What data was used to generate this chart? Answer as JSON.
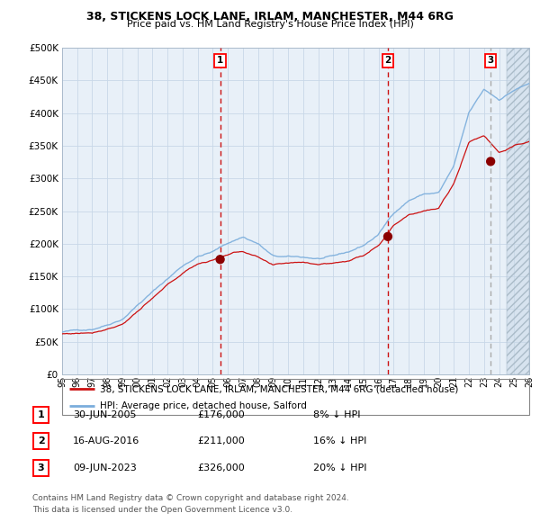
{
  "title": "38, STICKENS LOCK LANE, IRLAM, MANCHESTER, M44 6RG",
  "subtitle": "Price paid vs. HM Land Registry's House Price Index (HPI)",
  "hpi_color": "#7aaddc",
  "price_color": "#cc1111",
  "plot_bg": "#e8f0f8",
  "grid_color": "#c8d8e8",
  "marker_color": "#8b0000",
  "vline_color": "#cc1111",
  "vline3_color": "#aaaaaa",
  "transactions": [
    {
      "date_num": 2005.49,
      "price": 176000,
      "label": "1"
    },
    {
      "date_num": 2016.62,
      "price": 211000,
      "label": "2"
    },
    {
      "date_num": 2023.44,
      "price": 326000,
      "label": "3"
    }
  ],
  "transaction_details": [
    {
      "label": "1",
      "date": "30-JUN-2005",
      "price": "£176,000",
      "hpi": "8% ↓ HPI"
    },
    {
      "label": "2",
      "date": "16-AUG-2016",
      "price": "£211,000",
      "hpi": "16% ↓ HPI"
    },
    {
      "label": "3",
      "date": "09-JUN-2023",
      "price": "£326,000",
      "hpi": "20% ↓ HPI"
    }
  ],
  "legend_line1": "38, STICKENS LOCK LANE, IRLAM, MANCHESTER, M44 6RG (detached house)",
  "legend_line2": "HPI: Average price, detached house, Salford",
  "footer1": "Contains HM Land Registry data © Crown copyright and database right 2024.",
  "footer2": "This data is licensed under the Open Government Licence v3.0.",
  "xmin": 1995,
  "xmax": 2026,
  "ymin": 0,
  "ymax": 500000,
  "hpi_waypoints_x": [
    1995,
    1996,
    1997,
    1998,
    1999,
    2000,
    2001,
    2002,
    2003,
    2004,
    2005,
    2006,
    2007,
    2008,
    2009,
    2010,
    2011,
    2012,
    2013,
    2014,
    2015,
    2016,
    2017,
    2018,
    2019,
    2020,
    2021,
    2022,
    2023,
    2024,
    2025,
    2026
  ],
  "hpi_waypoints_y": [
    65000,
    67000,
    70000,
    78000,
    88000,
    110000,
    130000,
    150000,
    170000,
    185000,
    192000,
    205000,
    215000,
    205000,
    185000,
    183000,
    182000,
    180000,
    182000,
    188000,
    198000,
    215000,
    248000,
    268000,
    278000,
    280000,
    320000,
    400000,
    435000,
    420000,
    435000,
    445000
  ],
  "price_waypoints_x": [
    1995,
    1996,
    1997,
    1998,
    1999,
    2000,
    2001,
    2002,
    2003,
    2004,
    2005,
    2006,
    2007,
    2008,
    2009,
    2010,
    2011,
    2012,
    2013,
    2014,
    2015,
    2016,
    2017,
    2018,
    2019,
    2020,
    2021,
    2022,
    2023,
    2024,
    2025,
    2026
  ],
  "price_waypoints_y": [
    62000,
    63000,
    65000,
    72000,
    80000,
    100000,
    118000,
    138000,
    155000,
    170000,
    176000,
    185000,
    190000,
    180000,
    165000,
    168000,
    170000,
    168000,
    170000,
    174000,
    182000,
    200000,
    230000,
    248000,
    255000,
    258000,
    295000,
    360000,
    370000,
    345000,
    355000,
    360000
  ]
}
